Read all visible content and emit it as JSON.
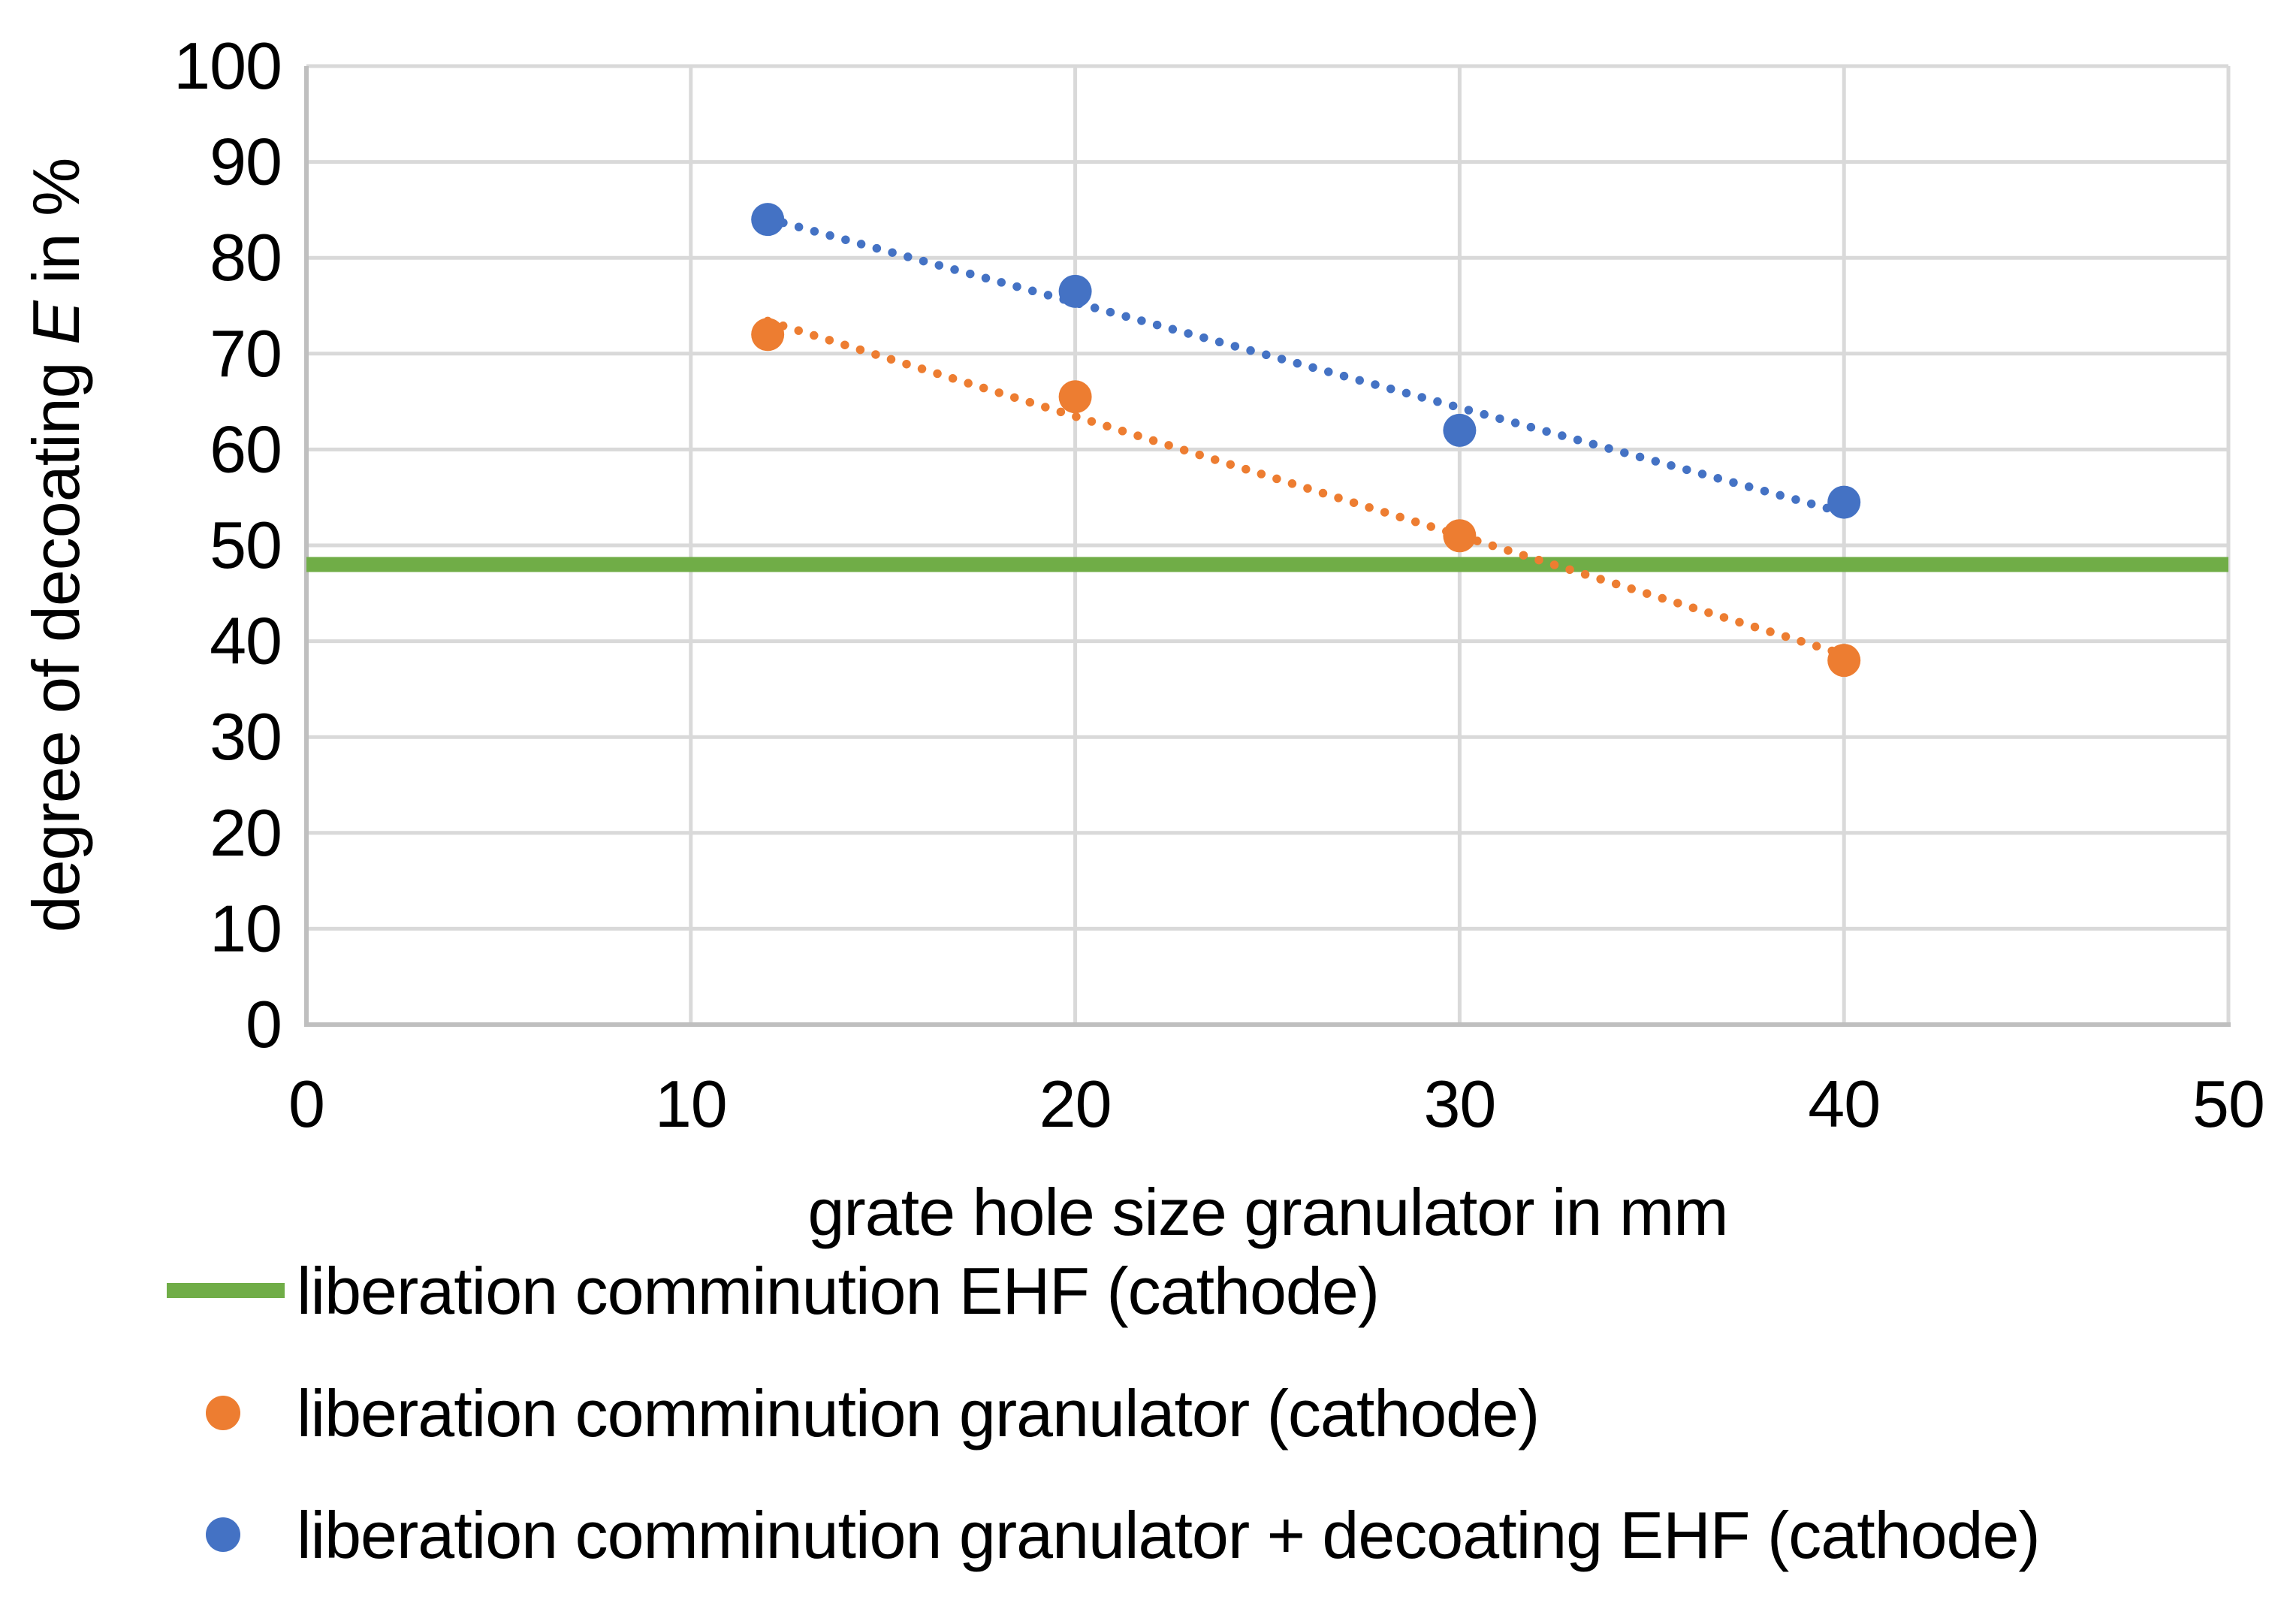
{
  "chart_data": {
    "type": "scatter",
    "title": "",
    "xlabel": "grate hole size granulator in mm",
    "ylabel": {
      "prefix": "degree of decoating ",
      "emph": "E",
      "suffix": " in %"
    },
    "xlim": [
      0,
      50
    ],
    "ylim": [
      0,
      100
    ],
    "x_ticks": [
      0,
      10,
      20,
      30,
      40,
      50
    ],
    "y_ticks": [
      0,
      10,
      20,
      30,
      40,
      50,
      60,
      70,
      80,
      90,
      100
    ],
    "grid": true,
    "legend_position": "bottom-left",
    "reference_line": {
      "label": "liberation comminution EHF (cathode)",
      "y": 48,
      "color": "#70AD47"
    },
    "series": [
      {
        "name": "liberation comminution granulator (cathode)",
        "color": "#ED7D31",
        "marker": "dot",
        "points": [
          [
            12,
            72
          ],
          [
            20,
            65.5
          ],
          [
            30,
            51
          ],
          [
            40,
            38
          ]
        ],
        "trendline": {
          "style": "dotted",
          "x1": 12,
          "y1": 73.4,
          "x2": 40,
          "y2": 38.6
        }
      },
      {
        "name": "liberation comminution granulator + decoating EHF (cathode)",
        "color": "#4472C4",
        "marker": "dot",
        "points": [
          [
            12,
            84
          ],
          [
            20,
            76.5
          ],
          [
            30,
            62
          ],
          [
            40,
            54.5
          ]
        ],
        "trendline": {
          "style": "dotted",
          "x1": 12,
          "y1": 84.1,
          "x2": 40,
          "y2": 53.4
        }
      }
    ]
  },
  "colors": {
    "grid": "#D9D9D9",
    "axis": "#BFBFBF",
    "text": "#000000"
  }
}
